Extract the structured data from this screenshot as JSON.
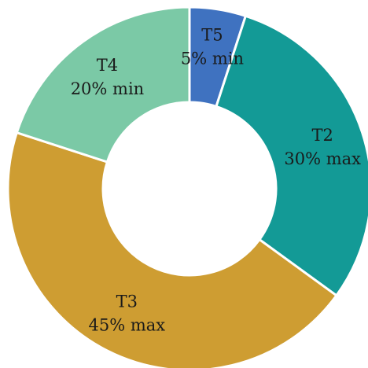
{
  "chart_data": {
    "type": "pie",
    "variant": "donut",
    "slices": [
      {
        "name": "T5",
        "value": 5,
        "label": "5% min",
        "color": "#3f72c0"
      },
      {
        "name": "T2",
        "value": 30,
        "label": "30% max",
        "color": "#139a96"
      },
      {
        "name": "T3",
        "value": 45,
        "label": "45% max",
        "color": "#ce9d32"
      },
      {
        "name": "T4",
        "value": 20,
        "label": "20% min",
        "color": "#7bc9a6"
      }
    ],
    "start": "top",
    "direction": "clockwise"
  }
}
